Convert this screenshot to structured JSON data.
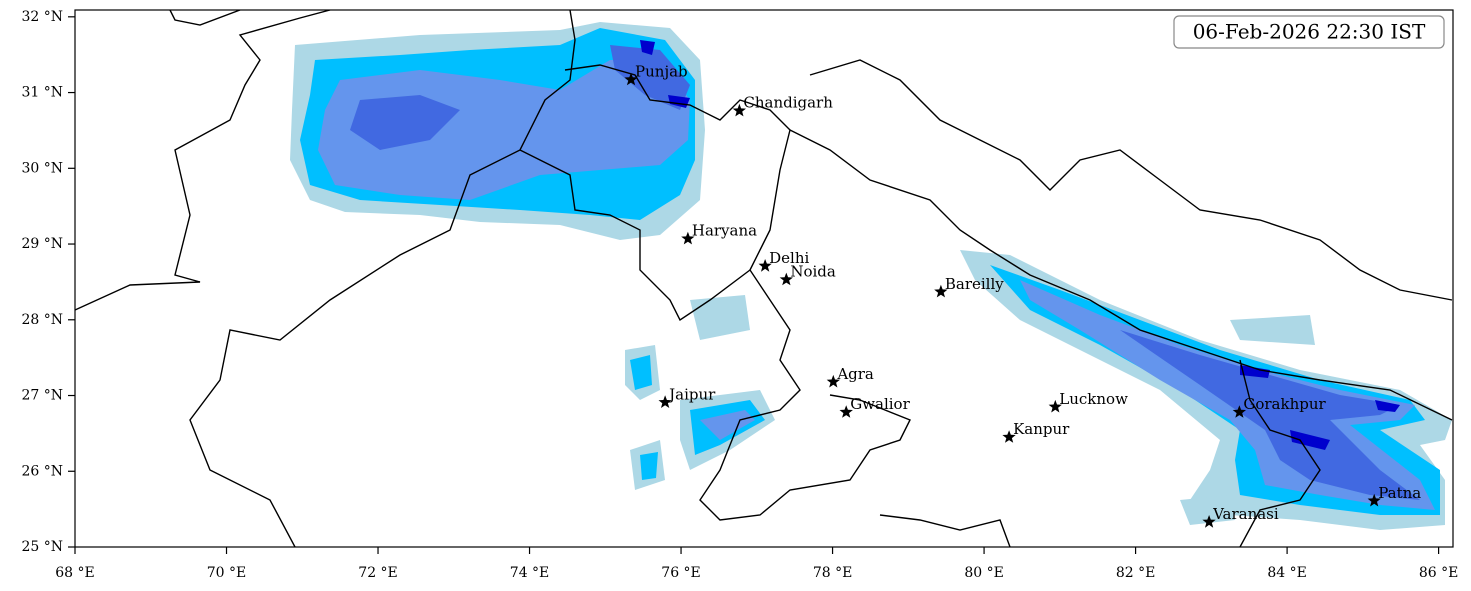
{
  "map": {
    "timestamp": "06-Feb-2026 22:30 IST",
    "xlim": [
      68,
      86.19
    ],
    "ylim": [
      25,
      32.09
    ],
    "xticks": [
      {
        "value": 68,
        "label": "68 °E"
      },
      {
        "value": 70,
        "label": "70 °E"
      },
      {
        "value": 72,
        "label": "72 °E"
      },
      {
        "value": 74,
        "label": "74 °E"
      },
      {
        "value": 76,
        "label": "76 °E"
      },
      {
        "value": 78,
        "label": "78 °E"
      },
      {
        "value": 80,
        "label": "80 °E"
      },
      {
        "value": 82,
        "label": "82 °E"
      },
      {
        "value": 84,
        "label": "84 °E"
      },
      {
        "value": 86,
        "label": "86 °E"
      }
    ],
    "yticks": [
      {
        "value": 25,
        "label": "25 °N"
      },
      {
        "value": 26,
        "label": "26 °N"
      },
      {
        "value": 27,
        "label": "27 °N"
      },
      {
        "value": 28,
        "label": "28 °N"
      },
      {
        "value": 29,
        "label": "29 °N"
      },
      {
        "value": 30,
        "label": "30 °N"
      },
      {
        "value": 31,
        "label": "31 °N"
      },
      {
        "value": 32,
        "label": "32 °N"
      }
    ],
    "cities": [
      {
        "name": "Punjab",
        "lon": 75.34,
        "lat": 31.17
      },
      {
        "name": "Chandigarh",
        "lon": 76.77,
        "lat": 30.76
      },
      {
        "name": "Haryana",
        "lon": 76.09,
        "lat": 29.07
      },
      {
        "name": "Delhi",
        "lon": 77.11,
        "lat": 28.71
      },
      {
        "name": "Noida",
        "lon": 77.39,
        "lat": 28.53
      },
      {
        "name": "Bareilly",
        "lon": 79.43,
        "lat": 28.37
      },
      {
        "name": "Agra",
        "lon": 78.01,
        "lat": 27.18
      },
      {
        "name": "Jaipur",
        "lon": 75.79,
        "lat": 26.91
      },
      {
        "name": "Gwalior",
        "lon": 78.18,
        "lat": 26.78
      },
      {
        "name": "Lucknow",
        "lon": 80.94,
        "lat": 26.85
      },
      {
        "name": "Kanpur",
        "lon": 80.33,
        "lat": 26.45
      },
      {
        "name": "Gorakhpur",
        "lon": 83.37,
        "lat": 26.78
      },
      {
        "name": "Patna",
        "lon": 85.15,
        "lat": 25.61
      },
      {
        "name": "Varanasi",
        "lon": 82.97,
        "lat": 25.33
      }
    ]
  }
}
